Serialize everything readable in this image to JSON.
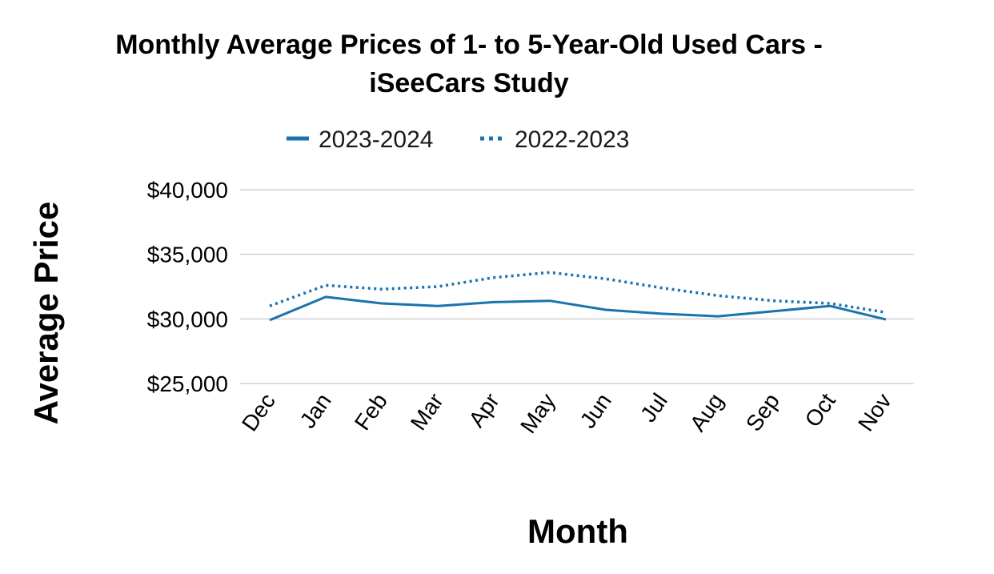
{
  "chart_data": {
    "type": "line",
    "title_line1": "Monthly Average Prices of 1- to 5-Year-Old Used Cars -",
    "title_line2": "iSeeCars Study",
    "xlabel": "Month",
    "ylabel": "Average Price",
    "categories": [
      "Dec",
      "Jan",
      "Feb",
      "Mar",
      "Apr",
      "May",
      "Jun",
      "Jul",
      "Aug",
      "Sep",
      "Oct",
      "Nov"
    ],
    "y_ticks": [
      "$25,000",
      "$30,000",
      "$35,000",
      "$40,000"
    ],
    "ylim": [
      25000,
      40000
    ],
    "legend_position": "top",
    "grid": "horizontal",
    "series": [
      {
        "name": "2023-2024",
        "style": "solid",
        "color": "#1a73ad",
        "values": [
          29900,
          31700,
          31200,
          31000,
          31300,
          31400,
          30700,
          30400,
          30200,
          30600,
          31000,
          29950
        ]
      },
      {
        "name": "2022-2023",
        "style": "dotted",
        "color": "#1a73ad",
        "values": [
          31000,
          32600,
          32300,
          32500,
          33200,
          33600,
          33100,
          32400,
          31800,
          31400,
          31200,
          30500
        ]
      }
    ]
  }
}
